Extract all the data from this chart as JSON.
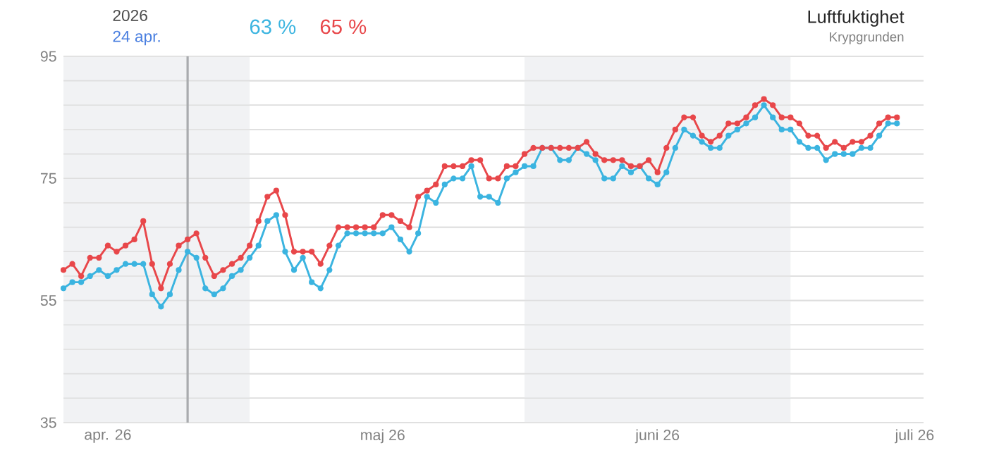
{
  "chart_data": {
    "type": "line",
    "title": "Luftfuktighet",
    "subtitle": "Krypgrunden",
    "annotations": [
      "2026",
      "24 apr.",
      "63 %",
      "65 %"
    ],
    "x": [
      "2026-04-10",
      "2026-04-11",
      "2026-04-12",
      "2026-04-13",
      "2026-04-14",
      "2026-04-15",
      "2026-04-16",
      "2026-04-17",
      "2026-04-18",
      "2026-04-19",
      "2026-04-20",
      "2026-04-21",
      "2026-04-22",
      "2026-04-23",
      "2026-04-24",
      "2026-04-25",
      "2026-04-26",
      "2026-04-27",
      "2026-04-28",
      "2026-04-29",
      "2026-04-30",
      "2026-05-01",
      "2026-05-02",
      "2026-05-03",
      "2026-05-04",
      "2026-05-05",
      "2026-05-06",
      "2026-05-07",
      "2026-05-08",
      "2026-05-09",
      "2026-05-10",
      "2026-05-11",
      "2026-05-12",
      "2026-05-13",
      "2026-05-14",
      "2026-05-15",
      "2026-05-16",
      "2026-05-17",
      "2026-05-18",
      "2026-05-19",
      "2026-05-20",
      "2026-05-21",
      "2026-05-22",
      "2026-05-23",
      "2026-05-24",
      "2026-05-25",
      "2026-05-26",
      "2026-05-27",
      "2026-05-28",
      "2026-05-29",
      "2026-05-30",
      "2026-05-31",
      "2026-06-01",
      "2026-06-02",
      "2026-06-03",
      "2026-06-04",
      "2026-06-05",
      "2026-06-06",
      "2026-06-07",
      "2026-06-08",
      "2026-06-09",
      "2026-06-10",
      "2026-06-11",
      "2026-06-12",
      "2026-06-13",
      "2026-06-14",
      "2026-06-15",
      "2026-06-16",
      "2026-06-17",
      "2026-06-18",
      "2026-06-19",
      "2026-06-20",
      "2026-06-21",
      "2026-06-22",
      "2026-06-23",
      "2026-06-24",
      "2026-06-25",
      "2026-06-26",
      "2026-06-27",
      "2026-06-28",
      "2026-06-29",
      "2026-06-30",
      "2026-07-01",
      "2026-07-02",
      "2026-07-03",
      "2026-07-04",
      "2026-07-05",
      "2026-07-06",
      "2026-07-07",
      "2026-07-08",
      "2026-07-09",
      "2026-07-10",
      "2026-07-11",
      "2026-07-12",
      "2026-07-13"
    ],
    "series": [
      {
        "color": "#3bb4e0",
        "values": [
          57,
          58,
          58,
          59,
          60,
          59,
          60,
          61,
          61,
          61,
          56,
          54,
          56,
          60,
          63,
          62,
          57,
          56,
          57,
          59,
          60,
          62,
          64,
          68,
          69,
          63,
          60,
          62,
          58,
          57,
          60,
          64,
          66,
          66,
          66,
          66,
          66,
          67,
          65,
          63,
          66,
          72,
          71,
          74,
          75,
          75,
          77,
          72,
          72,
          71,
          75,
          76,
          77,
          77,
          80,
          80,
          78,
          78,
          80,
          79,
          78,
          75,
          75,
          77,
          76,
          77,
          75,
          74,
          76,
          80,
          83,
          82,
          81,
          80,
          80,
          82,
          83,
          84,
          85,
          87,
          85,
          83,
          83,
          81,
          80,
          80,
          78,
          79,
          79,
          79,
          80,
          80,
          82,
          84,
          84
        ]
      },
      {
        "color": "#e8474a",
        "values": [
          60,
          61,
          59,
          62,
          62,
          64,
          63,
          64,
          65,
          68,
          61,
          57,
          61,
          64,
          65,
          66,
          62,
          59,
          60,
          61,
          62,
          64,
          68,
          72,
          73,
          69,
          63,
          63,
          63,
          61,
          64,
          67,
          67,
          67,
          67,
          67,
          69,
          69,
          68,
          67,
          72,
          73,
          74,
          77,
          77,
          77,
          78,
          78,
          75,
          75,
          77,
          77,
          79,
          80,
          80,
          80,
          80,
          80,
          80,
          81,
          79,
          78,
          78,
          78,
          77,
          77,
          78,
          76,
          80,
          83,
          85,
          85,
          82,
          81,
          82,
          84,
          84,
          85,
          87,
          88,
          87,
          85,
          85,
          84,
          82,
          82,
          80,
          81,
          80,
          81,
          81,
          82,
          84,
          85,
          85
        ]
      }
    ],
    "xlim": [
      "2026-04-10",
      "2026-07-16"
    ],
    "xticks": [
      {
        "value": "2026-04-15",
        "label": "apr. 26"
      },
      {
        "value": "2026-05-16",
        "label": "maj 26"
      },
      {
        "value": "2026-06-16",
        "label": "juni 26"
      },
      {
        "value": "2026-07-15",
        "label": "juli 26"
      }
    ],
    "ylim": [
      35,
      95
    ],
    "yticks": [
      35,
      {
        "value": 39,
        "label": null
      },
      {
        "value": 43,
        "label": null
      },
      {
        "value": 47,
        "label": null
      },
      {
        "value": 51,
        "label": null
      },
      55,
      {
        "value": 59,
        "label": null
      },
      {
        "value": 63,
        "label": null
      },
      {
        "value": 67,
        "label": null
      },
      {
        "value": 71,
        "label": null
      },
      75,
      {
        "value": 79,
        "label": null
      },
      {
        "value": 83,
        "label": null
      },
      {
        "value": 87,
        "label": null
      },
      {
        "value": 91,
        "label": null
      },
      95
    ],
    "bands": [
      {
        "axis": "x",
        "from": "2026-04-10",
        "to": "2026-05-01",
        "color": "#f1f2f4"
      },
      {
        "axis": "x",
        "from": "2026-06-01",
        "to": "2026-07-01",
        "color": "#f1f2f4"
      }
    ],
    "ref_lines": [
      {
        "axis": "x",
        "value": "2026-04-24",
        "color": "#a9abae"
      }
    ],
    "grid": "y",
    "marker": "circle",
    "line_style": "solid"
  }
}
